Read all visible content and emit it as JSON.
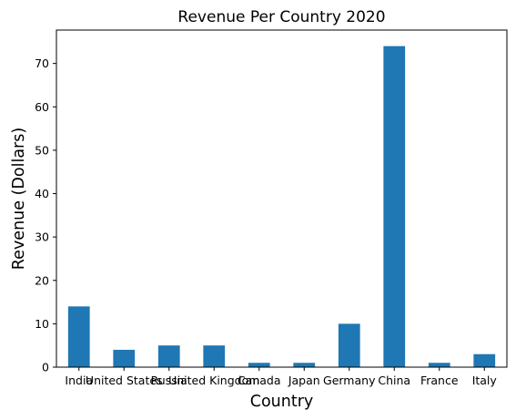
{
  "chart_data": {
    "type": "bar",
    "title": "Revenue Per Country 2020",
    "xlabel": "Country",
    "ylabel": "Revenue (Dollars)",
    "categories": [
      "India",
      "United States",
      "Russia",
      "United Kingdom",
      "Canada",
      "Japan",
      "Germany",
      "China",
      "France",
      "Italy"
    ],
    "values": [
      14,
      4,
      5,
      5,
      1,
      1,
      10,
      74,
      1,
      3
    ],
    "ylim": [
      0,
      77.7
    ],
    "yticks": [
      0,
      10,
      20,
      30,
      40,
      50,
      60,
      70
    ],
    "bar_color": "#1f77b4",
    "grid": false,
    "legend": "none"
  }
}
